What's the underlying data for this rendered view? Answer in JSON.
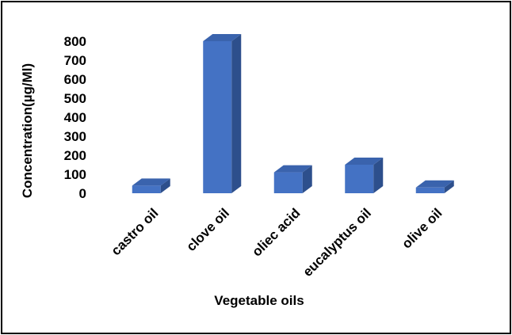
{
  "chart_data": {
    "type": "bar",
    "style": "3d-column",
    "categories": [
      "castro oil",
      "clove oil",
      "oliec acid",
      "eucalyptus oil",
      "olive oil"
    ],
    "values": [
      40,
      800,
      110,
      150,
      30
    ],
    "title": "",
    "xlabel": "Vegetable oils",
    "ylabel": "Concentration(µg/Ml)",
    "ylim": [
      0,
      800
    ],
    "yticks": [
      "0",
      "100",
      "200",
      "300",
      "400",
      "500",
      "600",
      "700",
      "800"
    ],
    "grid": false,
    "legend": "none",
    "colors": {
      "bar_front": "#4472c4",
      "bar_top": "#3a63ad",
      "bar_side": "#2d4f8c"
    }
  }
}
